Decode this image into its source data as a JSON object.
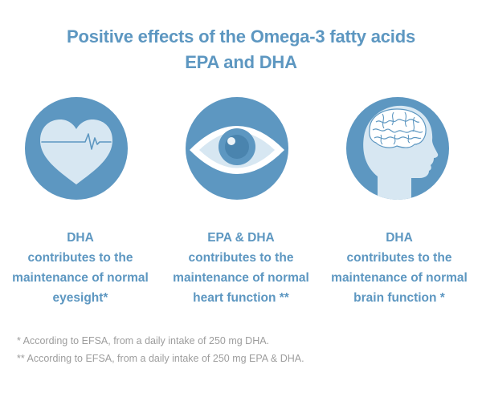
{
  "title": {
    "line1": "Positive effects of the Omega-3 fatty acids",
    "line2": "EPA and DHA"
  },
  "effects": [
    {
      "icon": "heart-icon",
      "line1": "DHA",
      "line2": "contributes to the",
      "line3": "maintenance of normal",
      "line4": "eyesight*"
    },
    {
      "icon": "eye-icon",
      "line1": "EPA & DHA",
      "line2": "contributes to the",
      "line3": "maintenance of normal",
      "line4": "heart function **"
    },
    {
      "icon": "brain-head-icon",
      "line1": "DHA",
      "line2": "contributes to the",
      "line3": "maintenance of normal",
      "line4": "brain function *"
    }
  ],
  "footnotes": {
    "single": "* According to EFSA, from a daily intake of 250 mg DHA.",
    "double": "** According to EFSA, from a daily intake of 250 mg EPA & DHA."
  },
  "colors": {
    "accent": "#5d97c1",
    "circle": "#5d97c1",
    "light": "#d7e7f2",
    "footnote": "#9d9d9d"
  }
}
